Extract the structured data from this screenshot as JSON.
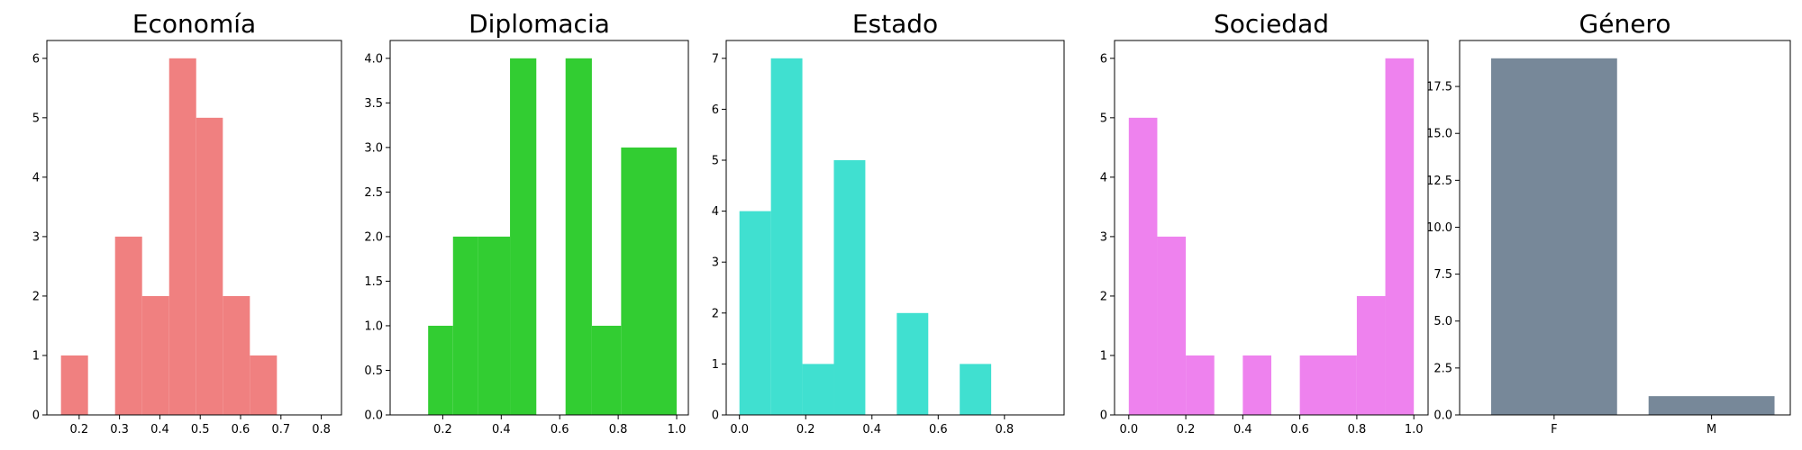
{
  "figure": {
    "background": "#ffffff"
  },
  "chart_data": [
    {
      "type": "bar",
      "title": "Economía",
      "color": "#f08080",
      "bins": [
        [
          0.155,
          0.222
        ],
        [
          0.289,
          0.356
        ],
        [
          0.356,
          0.423
        ],
        [
          0.423,
          0.49
        ],
        [
          0.49,
          0.556
        ],
        [
          0.556,
          0.623
        ],
        [
          0.623,
          0.69
        ]
      ],
      "values": [
        1,
        3,
        2,
        6,
        5,
        2,
        1
      ],
      "xlim": [
        0.12,
        0.85
      ],
      "ylim": [
        0,
        6.3
      ],
      "xticks": [
        0.2,
        0.3,
        0.4,
        0.5,
        0.6,
        0.7,
        0.8
      ],
      "xtick_labels": [
        "0.2",
        "0.3",
        "0.4",
        "0.5",
        "0.6",
        "0.7",
        "0.8"
      ],
      "yticks": [
        0,
        1,
        2,
        3,
        4,
        5,
        6
      ],
      "ytick_labels": [
        "0",
        "1",
        "2",
        "3",
        "4",
        "5",
        "6"
      ],
      "xlabel": "",
      "ylabel": ""
    },
    {
      "type": "bar",
      "title": "Diplomacia",
      "color": "#32cd32",
      "bins": [
        [
          0.15,
          0.235
        ],
        [
          0.235,
          0.32
        ],
        [
          0.32,
          0.43
        ],
        [
          0.43,
          0.52
        ],
        [
          0.62,
          0.71
        ],
        [
          0.71,
          0.81
        ],
        [
          0.81,
          1.0
        ]
      ],
      "values": [
        1,
        2,
        2,
        4,
        4,
        1,
        3
      ],
      "xlim": [
        0.02,
        1.04
      ],
      "ylim": [
        0,
        4.2
      ],
      "xticks": [
        0.2,
        0.4,
        0.6,
        0.8,
        1.0
      ],
      "xtick_labels": [
        "0.2",
        "0.4",
        "0.6",
        "0.8",
        "1.0"
      ],
      "yticks": [
        0,
        0.5,
        1,
        1.5,
        2,
        2.5,
        3,
        3.5,
        4
      ],
      "ytick_labels": [
        "0.0",
        "0.5",
        "1.0",
        "1.5",
        "2.0",
        "2.5",
        "3.0",
        "3.5",
        "4.0"
      ],
      "xlabel": "",
      "ylabel": ""
    },
    {
      "type": "bar",
      "title": "Estado",
      "color": "#40e0d0",
      "bins": [
        [
          0.0,
          0.095
        ],
        [
          0.095,
          0.19
        ],
        [
          0.19,
          0.285
        ],
        [
          0.285,
          0.38
        ],
        [
          0.475,
          0.57
        ],
        [
          0.665,
          0.76
        ]
      ],
      "values": [
        4,
        7,
        1,
        5,
        2,
        1
      ],
      "xlim": [
        -0.04,
        0.98
      ],
      "ylim": [
        0,
        7.35
      ],
      "xticks": [
        0.0,
        0.2,
        0.4,
        0.6,
        0.8
      ],
      "xtick_labels": [
        "0.0",
        "0.2",
        "0.4",
        "0.6",
        "0.8"
      ],
      "yticks": [
        0,
        1,
        2,
        3,
        4,
        5,
        6,
        7
      ],
      "ytick_labels": [
        "0",
        "1",
        "2",
        "3",
        "4",
        "5",
        "6",
        "7"
      ],
      "xlabel": "",
      "ylabel": ""
    },
    {
      "type": "bar",
      "title": "Sociedad",
      "color": "#ee82ee",
      "bins": [
        [
          0.0,
          0.1
        ],
        [
          0.1,
          0.2
        ],
        [
          0.2,
          0.3
        ],
        [
          0.4,
          0.5
        ],
        [
          0.6,
          0.8
        ],
        [
          0.8,
          0.9
        ],
        [
          0.9,
          1.0
        ]
      ],
      "values": [
        5,
        3,
        1,
        1,
        1,
        2,
        6
      ],
      "xlim": [
        -0.05,
        1.05
      ],
      "ylim": [
        0,
        6.3
      ],
      "xticks": [
        0.0,
        0.2,
        0.4,
        0.6,
        0.8,
        1.0
      ],
      "xtick_labels": [
        "0.0",
        "0.2",
        "0.4",
        "0.6",
        "0.8",
        "1.0"
      ],
      "yticks": [
        0,
        1,
        2,
        3,
        4,
        5,
        6
      ],
      "ytick_labels": [
        "0",
        "1",
        "2",
        "3",
        "4",
        "5",
        "6"
      ],
      "xlabel": "",
      "ylabel": ""
    },
    {
      "type": "bar",
      "title": "Género",
      "color": "#778899",
      "categories": [
        "F",
        "M"
      ],
      "values": [
        19,
        1
      ],
      "xlim": [
        -0.6,
        1.5
      ],
      "ylim": [
        0,
        19.95
      ],
      "yticks": [
        0,
        2.5,
        5,
        7.5,
        10,
        12.5,
        15,
        17.5
      ],
      "ytick_labels": [
        "0.0",
        "2.5",
        "5.0",
        "7.5",
        "10.0",
        "12.5",
        "15.0",
        "17.5"
      ],
      "xlabel": "",
      "ylabel": ""
    }
  ]
}
